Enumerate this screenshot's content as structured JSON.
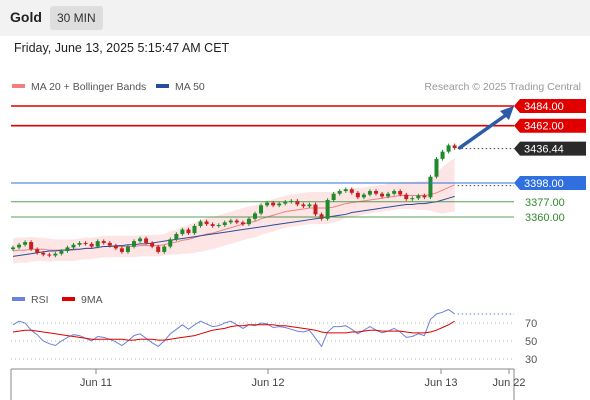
{
  "header": {
    "title": "Gold",
    "timeframe": "30 MIN"
  },
  "datetime": "Friday, June 13, 2025 5:15:47 AM CET",
  "colors": {
    "bb_legend": "#f08080",
    "ma50": "#2a4d9b",
    "resistance": "#e00000",
    "price_tag": "#2a2a2a",
    "blue_level": "#2f6fe0",
    "support": "#2e8b2e",
    "rsi": "#6a82d8",
    "rsi_ma": "#e00000",
    "candle_up": "#1e8a2a",
    "candle_down": "#c81e1e",
    "band_fill": "#fde2e2",
    "arrow": "#2a5ca8"
  },
  "chart_data": [
    {
      "type": "candlestick",
      "legend": [
        {
          "name": "MA 20 + Bollinger Bands",
          "color": "#f08080"
        },
        {
          "name": "MA 50",
          "color": "#2a4d9b"
        }
      ],
      "watermark": "Research © 2025 Trading Central",
      "x_ticks": [
        "Jun 11",
        "Jun 12",
        "Jun 13",
        "Jun 22"
      ],
      "ylim": [
        3300,
        3500
      ],
      "levels": [
        {
          "value": 3484.0,
          "label": "3484.00",
          "kind": "resistance"
        },
        {
          "value": 3462.0,
          "label": "3462.00",
          "kind": "resistance"
        },
        {
          "value": 3436.44,
          "label": "3436.44",
          "kind": "last_price"
        },
        {
          "value": 3398.0,
          "label": "3398.00",
          "kind": "pivot"
        },
        {
          "value": 3377.0,
          "label": "3377.00",
          "kind": "support"
        },
        {
          "value": 3360.0,
          "label": "3360.00",
          "kind": "support"
        }
      ],
      "close_values": [
        3326,
        3329,
        3332,
        3324,
        3320,
        3318,
        3317,
        3319,
        3322,
        3326,
        3329,
        3331,
        3330,
        3327,
        3333,
        3331,
        3328,
        3325,
        3321,
        3327,
        3333,
        3336,
        3331,
        3327,
        3321,
        3327,
        3335,
        3341,
        3346,
        3342,
        3350,
        3355,
        3352,
        3350,
        3351,
        3354,
        3356,
        3354,
        3352,
        3358,
        3364,
        3373,
        3376,
        3373,
        3375,
        3377,
        3378,
        3374,
        3372,
        3374,
        3363,
        3358,
        3379,
        3386,
        3389,
        3391,
        3387,
        3382,
        3385,
        3389,
        3386,
        3383,
        3386,
        3389,
        3385,
        3380,
        3381,
        3384,
        3382,
        3405,
        3425,
        3433,
        3440,
        3437
      ],
      "ma20_values": [
        3322,
        3323,
        3323,
        3324,
        3324,
        3324,
        3323,
        3323,
        3323,
        3323,
        3323,
        3324,
        3325,
        3325,
        3326,
        3327,
        3327,
        3327,
        3327,
        3327,
        3327,
        3328,
        3328,
        3328,
        3328,
        3329,
        3331,
        3332,
        3334,
        3335,
        3337,
        3339,
        3341,
        3342,
        3344,
        3346,
        3348,
        3350,
        3352,
        3354,
        3355,
        3358,
        3360,
        3362,
        3364,
        3366,
        3367,
        3368,
        3369,
        3370,
        3370,
        3370,
        3370,
        3371,
        3373,
        3375,
        3376,
        3377,
        3378,
        3379,
        3380,
        3381,
        3382,
        3383,
        3384,
        3384,
        3384,
        3384,
        3384,
        3385,
        3387,
        3390,
        3393,
        3396
      ],
      "ma50_values": [
        3316,
        3317,
        3318,
        3319,
        3320,
        3321,
        3322,
        3322,
        3323,
        3323,
        3324,
        3324,
        3325,
        3325,
        3326,
        3327,
        3327,
        3328,
        3328,
        3329,
        3329,
        3330,
        3330,
        3331,
        3332,
        3333,
        3334,
        3335,
        3336,
        3337,
        3338,
        3339,
        3340,
        3341,
        3342,
        3343,
        3344,
        3345,
        3346,
        3347,
        3348,
        3349,
        3350,
        3351,
        3352,
        3353,
        3354,
        3355,
        3356,
        3357,
        3358,
        3359,
        3360,
        3361,
        3362,
        3363,
        3365,
        3366,
        3367,
        3368,
        3369,
        3370,
        3371,
        3372,
        3373,
        3374,
        3374,
        3375,
        3375,
        3376,
        3377,
        3379,
        3381,
        3383
      ],
      "bb_halfwidth": [
        14,
        14,
        14,
        14,
        13,
        13,
        13,
        12,
        12,
        12,
        12,
        12,
        12,
        12,
        12,
        12,
        12,
        12,
        12,
        12,
        12,
        12,
        12,
        12,
        12,
        12,
        13,
        14,
        15,
        16,
        17,
        18,
        18,
        18,
        18,
        18,
        18,
        18,
        18,
        18,
        18,
        18,
        18,
        18,
        18,
        18,
        18,
        18,
        18,
        18,
        18,
        18,
        18,
        17,
        17,
        16,
        16,
        16,
        15,
        15,
        15,
        15,
        15,
        15,
        15,
        15,
        15,
        16,
        16,
        18,
        22,
        26,
        28,
        30
      ],
      "projection": {
        "from": 3436.44,
        "to": 3484.0
      }
    },
    {
      "type": "line",
      "legend": [
        {
          "name": "RSI",
          "color": "#6a82d8"
        },
        {
          "name": "9MA",
          "color": "#e00000"
        }
      ],
      "ylim": [
        20,
        90
      ],
      "y_ticks": [
        70,
        50,
        30
      ],
      "series": [
        {
          "name": "RSI",
          "values": [
            68,
            72,
            70,
            62,
            57,
            50,
            47,
            45,
            50,
            54,
            57,
            56,
            53,
            50,
            55,
            54,
            52,
            49,
            45,
            50,
            56,
            58,
            53,
            48,
            44,
            50,
            58,
            63,
            68,
            63,
            68,
            72,
            69,
            66,
            67,
            70,
            72,
            68,
            64,
            68,
            67,
            70,
            69,
            65,
            66,
            65,
            63,
            61,
            60,
            62,
            53,
            44,
            60,
            66,
            66,
            67,
            63,
            58,
            62,
            66,
            62,
            59,
            61,
            64,
            60,
            54,
            55,
            58,
            56,
            74,
            80,
            82,
            85,
            80
          ]
        },
        {
          "name": "9MA",
          "values": [
            60,
            61,
            62,
            62,
            61,
            60,
            59,
            58,
            57,
            56,
            55,
            54,
            53,
            52,
            52,
            52,
            52,
            52,
            52,
            51,
            51,
            52,
            52,
            52,
            51,
            51,
            52,
            53,
            54,
            55,
            56,
            58,
            60,
            62,
            63,
            64,
            66,
            67,
            67,
            68,
            68,
            68,
            68,
            68,
            67,
            67,
            66,
            65,
            64,
            63,
            62,
            60,
            59,
            59,
            59,
            59,
            60,
            60,
            61,
            62,
            62,
            61,
            61,
            61,
            61,
            60,
            59,
            59,
            59,
            60,
            62,
            65,
            68,
            72
          ]
        }
      ]
    }
  ]
}
